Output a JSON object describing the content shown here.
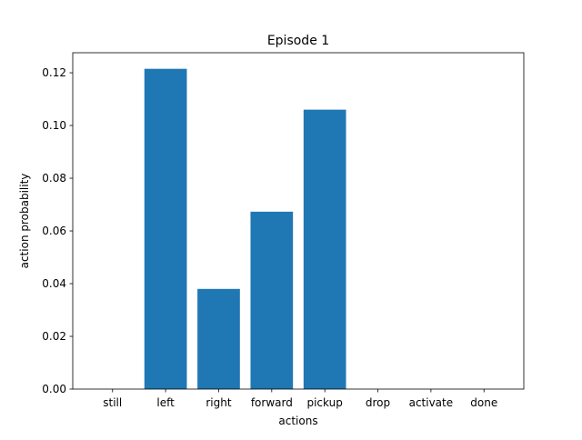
{
  "chart_data": {
    "type": "bar",
    "title": "Episode 1",
    "xlabel": "actions",
    "ylabel": "action probability",
    "categories": [
      "still",
      "left",
      "right",
      "forward",
      "pickup",
      "drop",
      "activate",
      "done"
    ],
    "values": [
      0.0,
      0.1215,
      0.038,
      0.0673,
      0.106,
      0.0,
      0.0,
      0.0
    ],
    "ylim": [
      0,
      0.1276
    ],
    "yticks": [
      "0.00",
      "0.02",
      "0.04",
      "0.06",
      "0.08",
      "0.10",
      "0.12"
    ],
    "bar_color": "#1f77b4",
    "grid": false,
    "legend": "none"
  }
}
